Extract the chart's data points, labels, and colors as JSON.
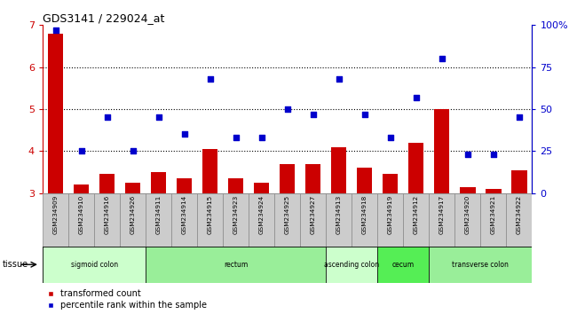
{
  "title": "GDS3141 / 229024_at",
  "samples": [
    "GSM234909",
    "GSM234910",
    "GSM234916",
    "GSM234926",
    "GSM234911",
    "GSM234914",
    "GSM234915",
    "GSM234923",
    "GSM234924",
    "GSM234925",
    "GSM234927",
    "GSM234913",
    "GSM234918",
    "GSM234919",
    "GSM234912",
    "GSM234917",
    "GSM234920",
    "GSM234921",
    "GSM234922"
  ],
  "bar_values": [
    6.8,
    3.2,
    3.45,
    3.25,
    3.5,
    3.35,
    4.05,
    3.35,
    3.25,
    3.7,
    3.7,
    4.1,
    3.6,
    3.45,
    4.2,
    5.0,
    3.15,
    3.1,
    3.55
  ],
  "dot_values": [
    97,
    25,
    45,
    25,
    45,
    35,
    68,
    33,
    33,
    50,
    47,
    68,
    47,
    33,
    57,
    80,
    23,
    23,
    45
  ],
  "ylim_left": [
    3,
    7
  ],
  "ylim_right": [
    0,
    100
  ],
  "yticks_left": [
    3,
    4,
    5,
    6,
    7
  ],
  "yticks_right": [
    0,
    25,
    50,
    75,
    100
  ],
  "ytick_labels_right": [
    "0",
    "25",
    "50",
    "75",
    "100%"
  ],
  "bar_color": "#cc0000",
  "dot_color": "#0000cc",
  "tissue_groups": [
    {
      "label": "sigmoid colon",
      "start": 0,
      "end": 4,
      "color": "#ccffcc"
    },
    {
      "label": "rectum",
      "start": 4,
      "end": 11,
      "color": "#99ee99"
    },
    {
      "label": "ascending colon",
      "start": 11,
      "end": 13,
      "color": "#ccffcc"
    },
    {
      "label": "cecum",
      "start": 13,
      "end": 15,
      "color": "#55ee55"
    },
    {
      "label": "transverse colon",
      "start": 15,
      "end": 19,
      "color": "#99ee99"
    }
  ],
  "legend_bar_label": "transformed count",
  "legend_dot_label": "percentile rank within the sample",
  "tissue_label": "tissue",
  "left_axis_color": "#cc0000",
  "right_axis_color": "#0000cc",
  "label_bg_color": "#cccccc",
  "label_border_color": "#888888",
  "plot_bg_color": "#ffffff"
}
